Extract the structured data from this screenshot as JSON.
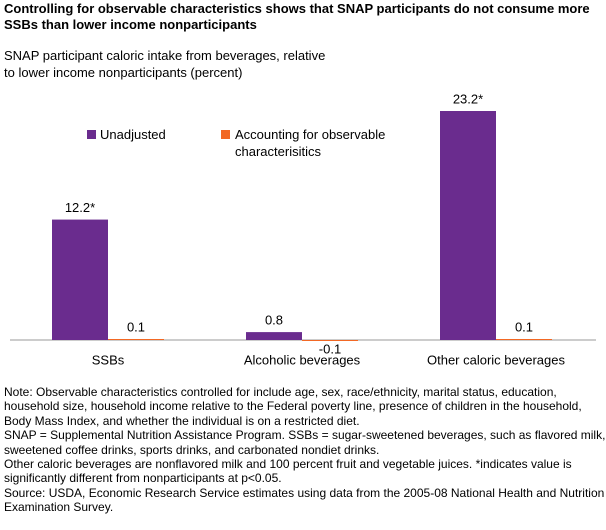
{
  "chart_data": {
    "type": "bar",
    "title": "Controlling for observable characteristics shows that SNAP participants do not consume more SSBs than lower income nonparticipants",
    "y_label": "SNAP participant caloric intake from beverages, relative to lower income nonparticipants (percent)",
    "categories": [
      "SSBs",
      "Alcoholic beverages",
      "Other caloric beverages"
    ],
    "series": [
      {
        "name": "Unadjusted",
        "color": "#6a2c8e",
        "values": [
          12.2,
          0.8,
          23.2
        ],
        "value_labels": [
          "12.2*",
          "0.8",
          "23.2*"
        ]
      },
      {
        "name": "Accounting for observable characterisitics",
        "color": "#f26722",
        "values": [
          0.1,
          -0.1,
          0.1
        ]
      }
    ],
    "notes": [
      "Note: Observable characteristics controlled for include age, sex, race/ethnicity, marital status, education, household size, household income relative to the Federal poverty line, presence of children in the household, Body Mass Index, and whether the individual is on a restricted diet.",
      "SNAP = Supplemental Nutrition Assistance Program. SSBs = sugar-sweetened beverages, such as flavored milk, sweetened coffee drinks, sports drinks, and carbonated nondiet drinks.",
      "Other caloric beverages are nonflavored milk and 100 percent fruit and vegetable juices. *indicates value is significantly different from nonparticipants at p<0.05.",
      "Source: USDA, Economic Research Service estimates using data from the 2005-08 National Health and Nutrition Examination Survey."
    ]
  }
}
